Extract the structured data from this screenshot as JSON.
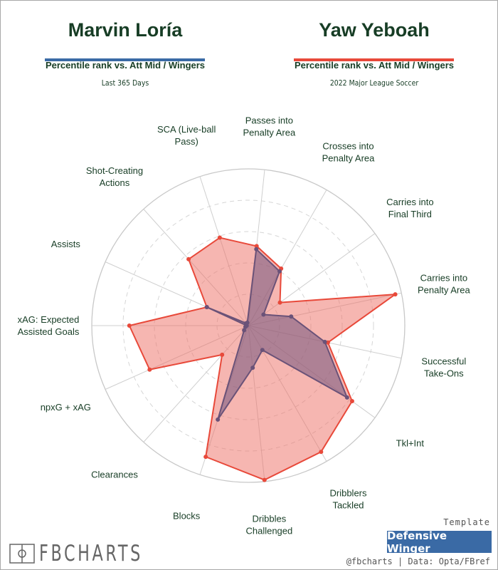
{
  "players": [
    {
      "name": "Marvin Loría",
      "subtitle": "Percentile rank vs. Att Mid / Wingers",
      "context": "Last 365 Days",
      "color": "#3a6aa5"
    },
    {
      "name": "Yaw Yeboah",
      "subtitle": "Percentile rank vs. Att Mid / Wingers",
      "context": "2022 Major League Soccer",
      "color": "#e8493a"
    }
  ],
  "chart_data": {
    "type": "radar",
    "range": [
      0,
      100
    ],
    "gridlines": [
      20,
      40,
      60,
      80,
      100
    ],
    "categories": [
      [
        "Passes into",
        "Penalty Area"
      ],
      [
        "Crosses into",
        "Penalty Area"
      ],
      [
        "Carries into",
        "Final Third"
      ],
      [
        "Carries into",
        "Penalty Area"
      ],
      [
        "Successful",
        "Take-Ons"
      ],
      [
        "Tkl+Int"
      ],
      [
        "Dribblers",
        "Tackled"
      ],
      [
        "Dribbles",
        "Challenged"
      ],
      [
        "Blocks"
      ],
      [
        "Clearances"
      ],
      [
        "npxG + xAG"
      ],
      [
        "xAG: Expected",
        "Assisted Goals"
      ],
      [
        "Assists"
      ],
      [
        "Shot-Creating",
        "Actions"
      ],
      [
        "SCA (Live-ball",
        "Pass)"
      ]
    ],
    "series": [
      {
        "name": "Yaw Yeboah",
        "stroke": "#e8493a",
        "fill": "rgba(238,110,100,0.5)",
        "values": [
          51,
          42,
          25,
          96,
          52,
          82,
          93,
          99,
          88,
          25,
          69,
          76,
          29,
          57,
          59
        ]
      },
      {
        "name": "Marvin Loría",
        "stroke": "#6a5278",
        "fill": "rgba(115,85,125,0.55)",
        "values": [
          49,
          40,
          12,
          28,
          50,
          78,
          18,
          27,
          63,
          4,
          2,
          1,
          29,
          2,
          2
        ]
      }
    ]
  },
  "footer": {
    "logo": "FBCHARTS",
    "template_label": "Template",
    "template_value": "Defensive Winger",
    "credits": "@fbcharts | Data: Opta/FBref"
  }
}
